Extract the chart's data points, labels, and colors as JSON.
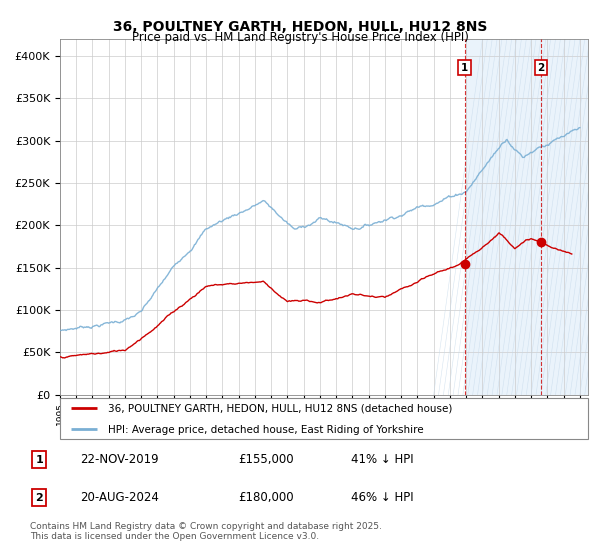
{
  "title": "36, POULTNEY GARTH, HEDON, HULL, HU12 8NS",
  "subtitle": "Price paid vs. HM Land Registry's House Price Index (HPI)",
  "red_label": "36, POULTNEY GARTH, HEDON, HULL, HU12 8NS (detached house)",
  "blue_label": "HPI: Average price, detached house, East Riding of Yorkshire",
  "transaction1_date": "22-NOV-2019",
  "transaction1_price": "£155,000",
  "transaction1_hpi": "41% ↓ HPI",
  "transaction2_date": "20-AUG-2024",
  "transaction2_price": "£180,000",
  "transaction2_hpi": "46% ↓ HPI",
  "footer": "Contains HM Land Registry data © Crown copyright and database right 2025.\nThis data is licensed under the Open Government Licence v3.0.",
  "ylim": [
    0,
    420000
  ],
  "xlim_start": 1995.0,
  "xlim_end": 2027.5,
  "hatch_start": 2020.0,
  "hatch_end": 2027.5,
  "red_color": "#cc0000",
  "blue_color": "#7aafd4",
  "marker1_x": 2019.9,
  "marker1_y": 155000,
  "marker2_x": 2024.6,
  "marker2_y": 180000,
  "vline1_x": 2019.9,
  "vline2_x": 2024.6,
  "bg_color": "#eaf3fb",
  "chart_bg": "white"
}
